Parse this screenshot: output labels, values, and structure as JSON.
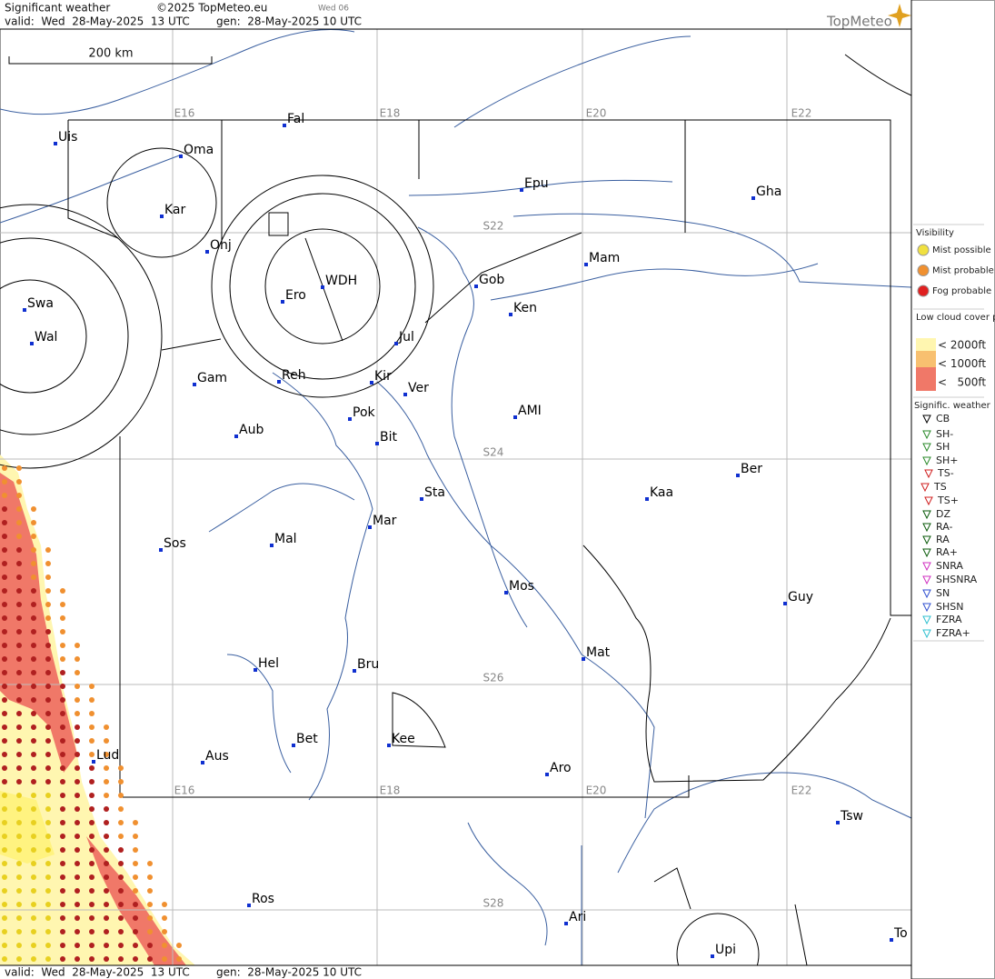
{
  "header": {
    "title": "Significant weather",
    "copyright": "©2025 TopMeteo.eu",
    "run": "Wed 06",
    "valid": "valid:  Wed  28-May-2025  13 UTC",
    "gen": "gen:  28-May-2025 10 UTC",
    "logo": "TopMeteo"
  },
  "map": {
    "scale": "200 km",
    "grid_top": [
      "E16",
      "E18",
      "E20",
      "E22"
    ],
    "grid_bottom": [
      "E16",
      "E18",
      "E20",
      "E22"
    ],
    "grid_lat": [
      "S22",
      "S24",
      "S26",
      "S28"
    ],
    "places": [
      "Uis",
      "Oma",
      "Fal",
      "Kar",
      "Onj",
      "Swa",
      "Wal",
      "Ero",
      "WDH",
      "Jul",
      "Gob",
      "Mam",
      "Ken",
      "Epu",
      "Gha",
      "Gam",
      "Reh",
      "Kir",
      "Ver",
      "Pok",
      "Bit",
      "AMI",
      "Aub",
      "Sta",
      "Ber",
      "Kaa",
      "Sos",
      "Mal",
      "Mar",
      "Mos",
      "Guy",
      "Hel",
      "Bru",
      "Mat",
      "Bet",
      "Kee",
      "Lud",
      "Aus",
      "Aro",
      "Tsw",
      "Ros",
      "Ari",
      "To",
      "Upi"
    ]
  },
  "legend": {
    "visibility_title": "Visibility",
    "visibility": [
      "Mist possible",
      "Mist probable",
      "Fog probable"
    ],
    "cloud_title": "Low cloud cover probable",
    "cloud": [
      "< 2000ft",
      "< 1000ft",
      "<   500ft"
    ],
    "weather_title": "Signific. weather",
    "weather": [
      "CB",
      "SH-",
      "SH",
      "SH+",
      "TS-",
      "TS",
      "TS+",
      "DZ",
      "RA-",
      "RA",
      "RA+",
      "SNRA",
      "SHSNRA",
      "SN",
      "SHSN",
      "FZRA",
      "FZRA+"
    ]
  },
  "footer": {
    "valid": "valid:  Wed  28-May-2025  13 UTC",
    "gen": "gen:  28-May-2025 10 UTC"
  }
}
